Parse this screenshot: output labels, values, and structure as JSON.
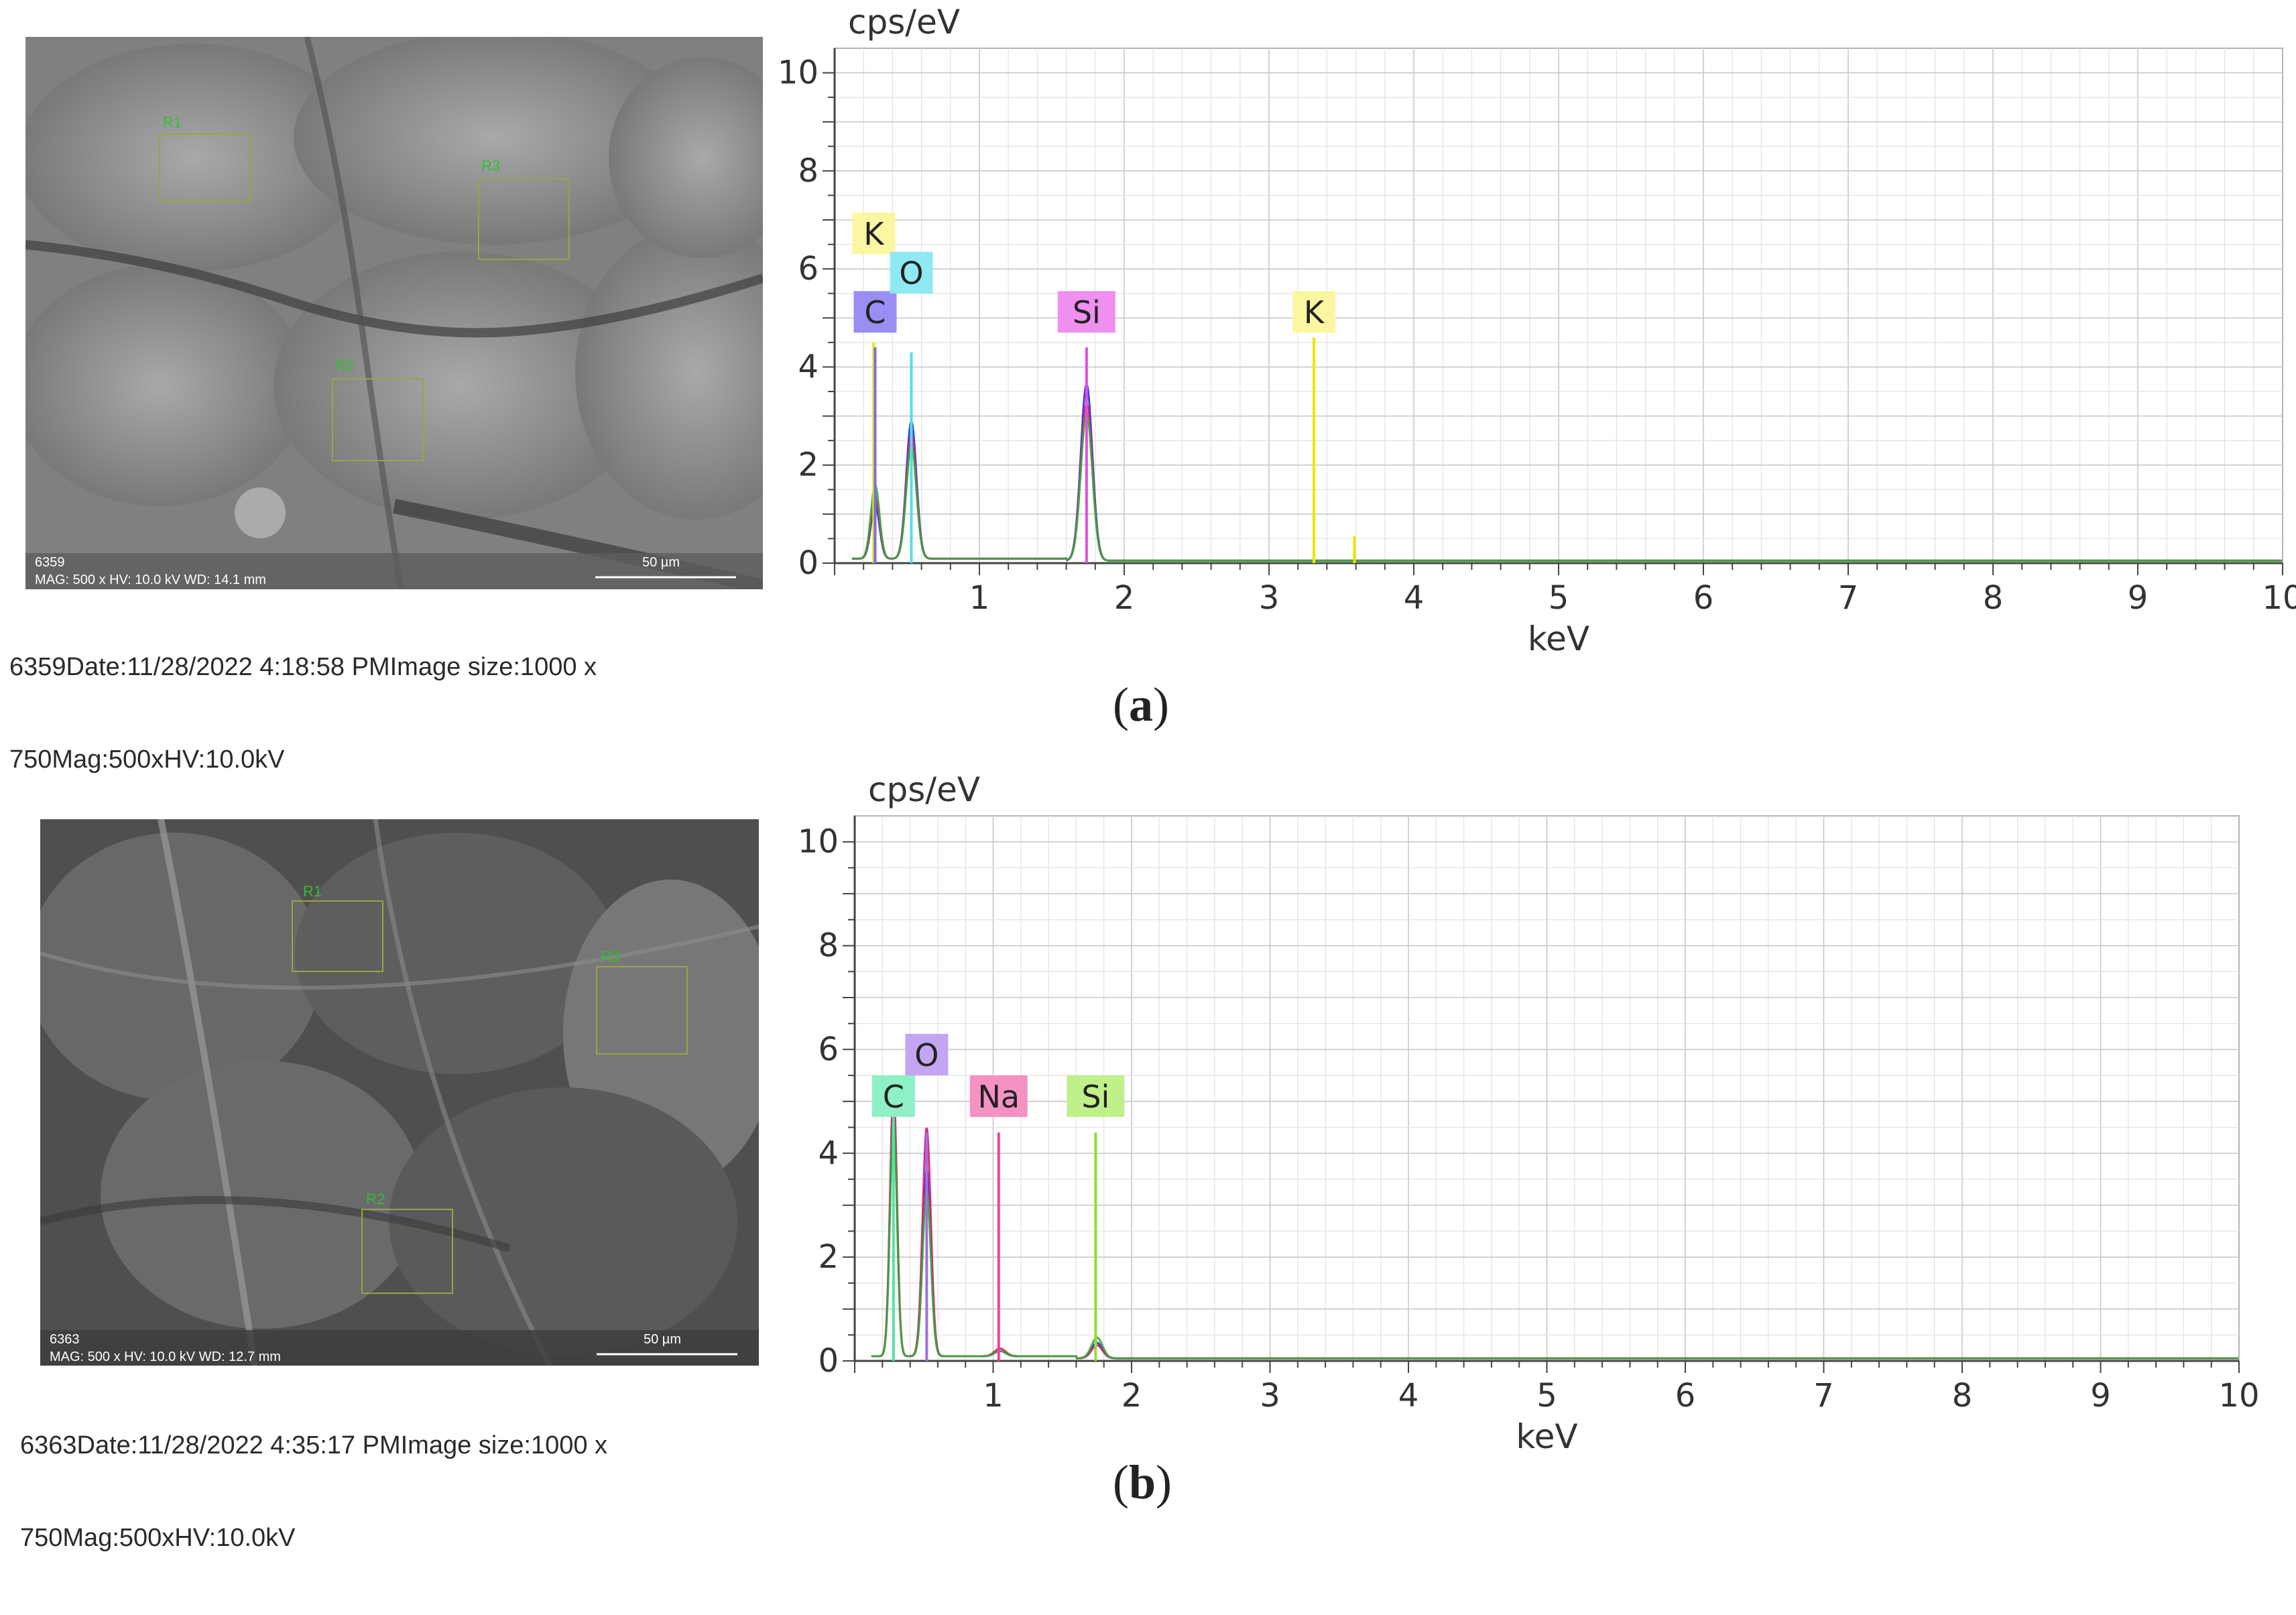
{
  "panels": [
    {
      "id": "a",
      "label": "a",
      "sem": {
        "image_id_text": "6359",
        "info_bar": "MAG: 500 x  HV: 10.0 kV  WD: 14.1 mm",
        "scale_bar": "50 µm",
        "regions": [
          "R1",
          "R2",
          "R3"
        ],
        "caption_line1": "6359Date:11/28/2022 4:18:58 PMImage size:1000 x",
        "caption_line2": "750Mag:500xHV:10.0kV"
      }
    },
    {
      "id": "b",
      "label": "b",
      "sem": {
        "image_id_text": "6363",
        "info_bar": "MAG: 500 x  HV: 10.0 kV  WD: 12.7 mm",
        "scale_bar": "50 µm",
        "regions": [
          "R1",
          "R2",
          "R3"
        ],
        "caption_line1": "6363Date:11/28/2022 4:35:17 PMImage size:1000 x",
        "caption_line2": "750Mag:500xHV:10.0kV"
      }
    }
  ],
  "chart_data": [
    {
      "type": "line",
      "panel": "a",
      "ylabel": "cps/eV",
      "xlabel": "keV",
      "xlim": [
        0,
        10
      ],
      "ylim": [
        0,
        10.5
      ],
      "xticks": [
        1,
        2,
        3,
        4,
        5,
        6,
        7,
        8,
        9,
        10
      ],
      "yticks": [
        0,
        2,
        4,
        6,
        8,
        10
      ],
      "grid": true,
      "series": [
        {
          "color": "#2b2bd9",
          "peaks": [
            {
              "x": 0.28,
              "y": 1.1,
              "w": 0.03
            },
            {
              "x": 0.53,
              "y": 2.8,
              "w": 0.035
            },
            {
              "x": 1.74,
              "y": 3.6,
              "w": 0.04
            }
          ],
          "baseline": 0.05
        },
        {
          "color": "#d91a6a",
          "peaks": [
            {
              "x": 0.28,
              "y": 1.3,
              "w": 0.03
            },
            {
              "x": 0.53,
              "y": 2.5,
              "w": 0.035
            },
            {
              "x": 1.74,
              "y": 3.2,
              "w": 0.04
            }
          ],
          "baseline": 0.05
        },
        {
          "color": "#3aa83a",
          "peaks": [
            {
              "x": 0.28,
              "y": 1.5,
              "w": 0.03
            },
            {
              "x": 0.53,
              "y": 2.3,
              "w": 0.035
            },
            {
              "x": 1.74,
              "y": 3.0,
              "w": 0.04
            }
          ],
          "baseline": 0.05
        }
      ],
      "element_markers": [
        {
          "symbol": "K",
          "x": 0.27,
          "y": 4.5,
          "label_y": 6.3,
          "color": "#e8e800",
          "label_bg": "#fbf7a0"
        },
        {
          "symbol": "C",
          "x": 0.28,
          "y": 4.4,
          "label_y": 4.7,
          "color": "#7a6cf0",
          "label_bg": "#9a8ef5"
        },
        {
          "symbol": "O",
          "x": 0.53,
          "y": 4.3,
          "label_y": 5.5,
          "color": "#55dde8",
          "label_bg": "#8fe9f2"
        },
        {
          "symbol": "Si",
          "x": 1.74,
          "y": 4.4,
          "label_y": 4.7,
          "color": "#e050e0",
          "label_bg": "#ef8ff0"
        },
        {
          "symbol": "K",
          "x": 3.31,
          "y": 4.6,
          "label_y": 4.7,
          "color": "#e8e800",
          "label_bg": "#fbf7a0"
        },
        {
          "symbol": "",
          "x": 3.59,
          "y": 0.55,
          "label_y": null,
          "color": "#e8e800",
          "label_bg": ""
        }
      ]
    },
    {
      "type": "line",
      "panel": "b",
      "ylabel": "cps/eV",
      "xlabel": "keV",
      "xlim": [
        0,
        10
      ],
      "ylim": [
        0,
        10.5
      ],
      "xticks": [
        1,
        2,
        3,
        4,
        5,
        6,
        7,
        8,
        9,
        10
      ],
      "yticks": [
        0,
        2,
        4,
        6,
        8,
        10
      ],
      "grid": true,
      "series": [
        {
          "color": "#2b2bd9",
          "peaks": [
            {
              "x": 0.28,
              "y": 4.9,
              "w": 0.025
            },
            {
              "x": 0.52,
              "y": 3.6,
              "w": 0.03
            },
            {
              "x": 1.05,
              "y": 0.1,
              "w": 0.04
            },
            {
              "x": 1.75,
              "y": 0.3,
              "w": 0.04
            }
          ],
          "baseline": 0.05
        },
        {
          "color": "#d91a6a",
          "peaks": [
            {
              "x": 0.28,
              "y": 5.2,
              "w": 0.025
            },
            {
              "x": 0.52,
              "y": 4.4,
              "w": 0.03
            },
            {
              "x": 1.05,
              "y": 0.15,
              "w": 0.04
            },
            {
              "x": 1.75,
              "y": 0.25,
              "w": 0.04
            }
          ],
          "baseline": 0.05
        },
        {
          "color": "#3aa83a",
          "peaks": [
            {
              "x": 0.28,
              "y": 4.6,
              "w": 0.025
            },
            {
              "x": 0.52,
              "y": 3.2,
              "w": 0.03
            },
            {
              "x": 1.05,
              "y": 0.1,
              "w": 0.04
            },
            {
              "x": 1.75,
              "y": 0.4,
              "w": 0.04
            }
          ],
          "baseline": 0.05
        }
      ],
      "element_markers": [
        {
          "symbol": "C",
          "x": 0.28,
          "y": 4.9,
          "label_y": 4.7,
          "color": "#55e0a8",
          "label_bg": "#8ff0c5"
        },
        {
          "symbol": "O",
          "x": 0.52,
          "y": 4.4,
          "label_y": 5.5,
          "color": "#a070e0",
          "label_bg": "#c4a5f2"
        },
        {
          "symbol": "Na",
          "x": 1.04,
          "y": 4.4,
          "label_y": 4.7,
          "color": "#f040a0",
          "label_bg": "#f592c4"
        },
        {
          "symbol": "Si",
          "x": 1.74,
          "y": 4.4,
          "label_y": 4.7,
          "color": "#8ee030",
          "label_bg": "#bff08a"
        }
      ]
    }
  ]
}
